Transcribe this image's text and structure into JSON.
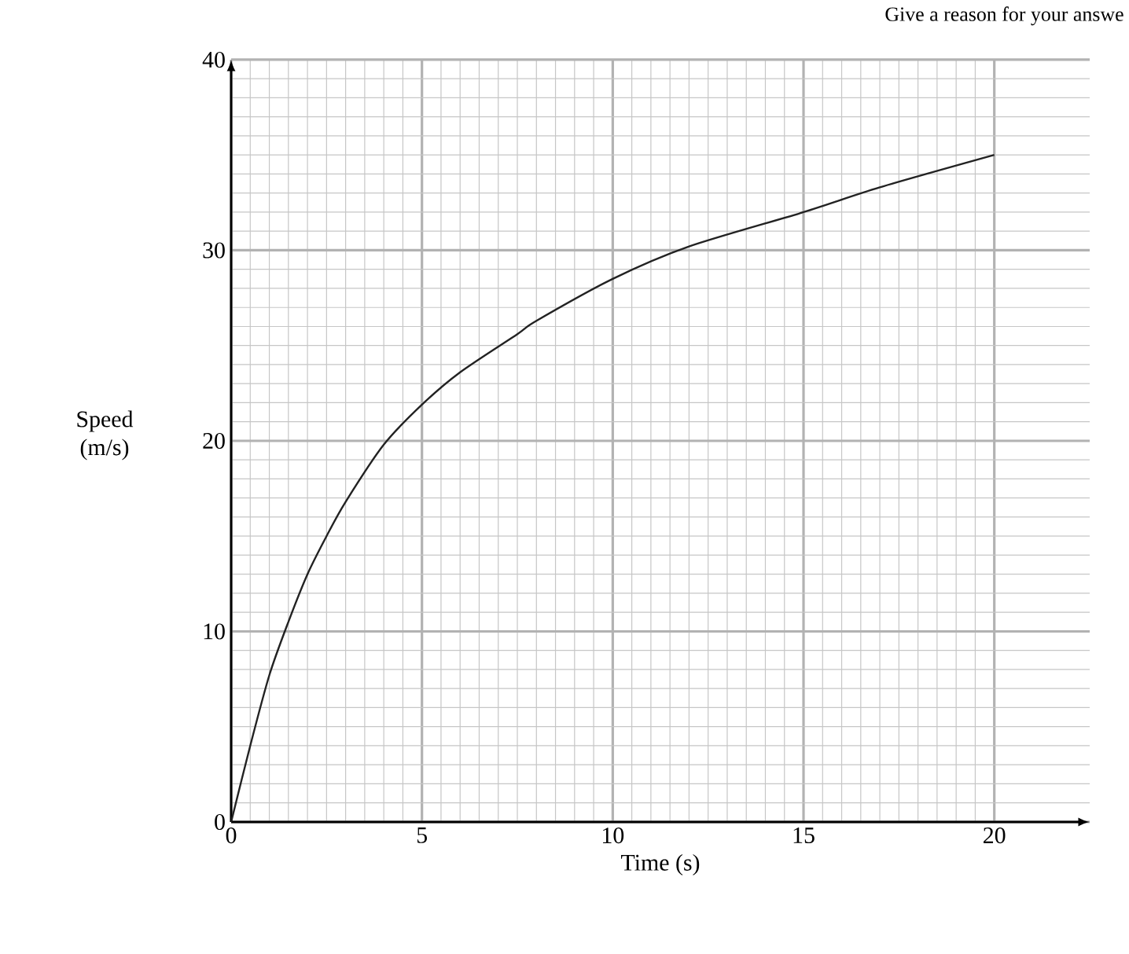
{
  "chart_data": {
    "type": "line",
    "xlabel": "Time (s)",
    "ylabel": "Speed (m/s)",
    "annotations": [
      "Give a reason for your answe"
    ],
    "x": [
      0,
      0.5,
      1,
      1.5,
      2,
      2.5,
      3,
      4,
      5,
      6,
      7.5,
      8,
      10,
      12,
      15,
      17,
      20
    ],
    "series": [
      {
        "color": "#222222",
        "values": [
          0,
          4,
          7.7,
          10.5,
          13,
          15,
          16.8,
          19.8,
          21.9,
          23.6,
          25.6,
          26.3,
          28.5,
          30.2,
          32,
          33.3,
          35
        ]
      }
    ],
    "xlim": [
      0,
      22.5
    ],
    "ylim": [
      0,
      40
    ],
    "xticks": [
      0,
      5,
      10,
      15,
      20
    ],
    "yticks": [
      0,
      10,
      20,
      30,
      40
    ],
    "grid": true,
    "marker": "none",
    "line_style": "solid"
  }
}
